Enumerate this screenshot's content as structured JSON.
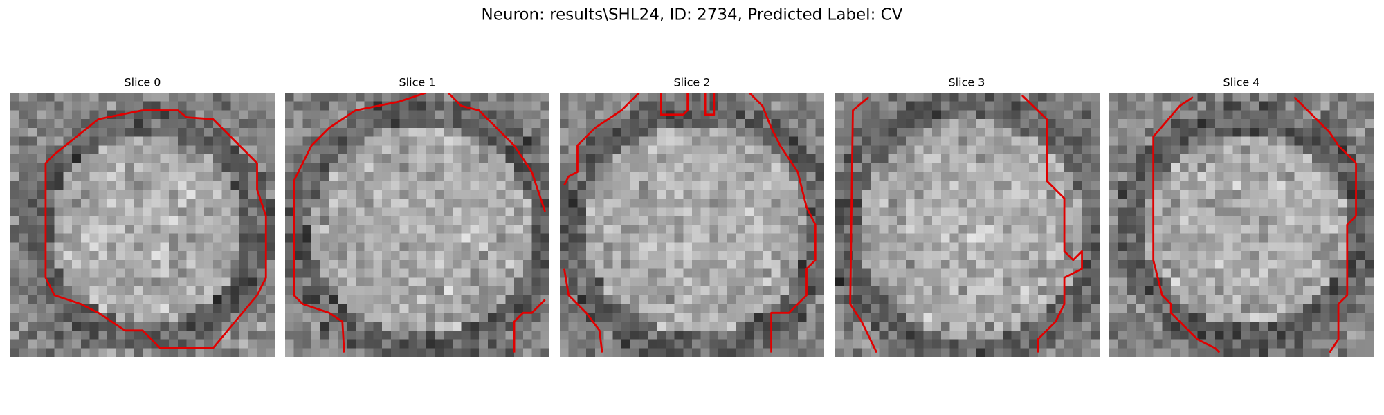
{
  "title": "Neuron: results\\SHL24, ID: 2734, Predicted Label: CV",
  "panels": [
    {
      "title": "Slice 0"
    },
    {
      "title": "Slice 1"
    },
    {
      "title": "Slice 2"
    },
    {
      "title": "Slice 3"
    },
    {
      "title": "Slice 4"
    }
  ]
}
